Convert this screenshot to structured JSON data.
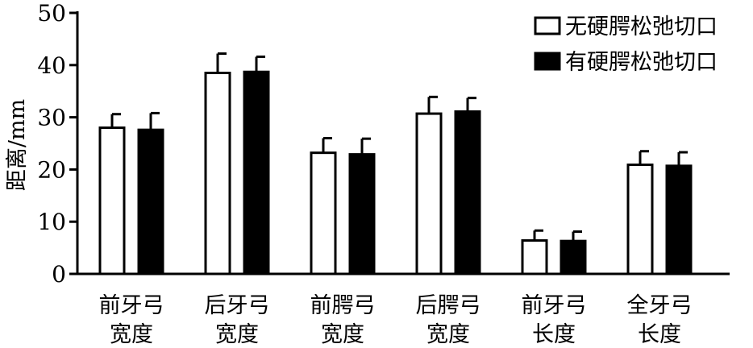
{
  "chart_data": {
    "type": "bar",
    "ylabel": "距离/mm",
    "ylim": [
      0,
      50
    ],
    "yticks": [
      0,
      10,
      20,
      30,
      40,
      50
    ],
    "grid": false,
    "legend_position": "top-right",
    "categories": [
      [
        "前牙弓",
        "宽度"
      ],
      [
        "后牙弓",
        "宽度"
      ],
      [
        "前腭弓",
        "宽度"
      ],
      [
        "后腭弓",
        "宽度"
      ],
      [
        "前牙弓",
        "长度"
      ],
      [
        "全牙弓",
        "长度"
      ]
    ],
    "series": [
      {
        "name": "无硬腭松弛切口",
        "fill": "#ffffff",
        "values": [
          28.0,
          38.5,
          23.2,
          30.7,
          6.4,
          20.9
        ],
        "errors": [
          2.6,
          3.7,
          2.8,
          3.2,
          1.9,
          2.6
        ]
      },
      {
        "name": "有硬腭松弛切口",
        "fill": "#000000",
        "values": [
          27.6,
          38.7,
          22.9,
          31.1,
          6.3,
          20.7
        ],
        "errors": [
          3.2,
          2.9,
          3.0,
          2.6,
          1.8,
          2.6
        ]
      }
    ]
  }
}
